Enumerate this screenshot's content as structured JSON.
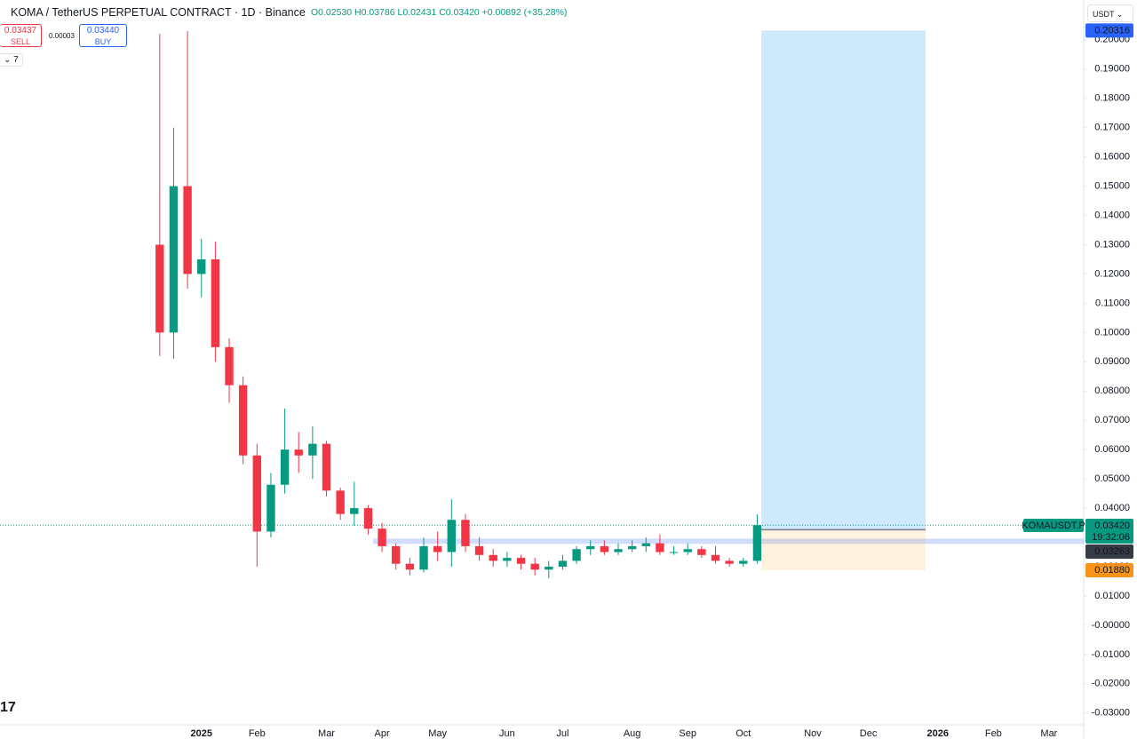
{
  "header": {
    "symbol": "KOMA / TetherUS PERPETUAL CONTRACT · 1D · Binance",
    "ohlc": "O0.02530 H0.03786 L0.02431 C0.03420 +0.00892 (+35.28%)"
  },
  "trade": {
    "sell_price": "0.03437",
    "sell": "SELL",
    "spread": "0.00003",
    "buy_price": "0.03440",
    "buy": "BUY"
  },
  "indicators_count": "7",
  "currency": "USDT",
  "chart_data": {
    "type": "candlestick",
    "categories": [
      null,
      null,
      null,
      "2025",
      null,
      null,
      null,
      "Feb",
      null,
      null,
      null,
      null,
      "Mar",
      null,
      null,
      null,
      "Apr",
      null,
      null,
      null,
      "May",
      null,
      null,
      null,
      null,
      "Jun",
      null,
      null,
      null,
      "Jul",
      null,
      null,
      null,
      null,
      "Aug",
      null,
      null,
      null,
      "Sep",
      null,
      null,
      null,
      "Oct",
      null,
      null,
      null,
      null,
      "Nov",
      null,
      null,
      null,
      "Dec",
      null,
      null,
      null,
      null,
      "2026",
      null,
      null,
      null,
      "Feb",
      null,
      null,
      null,
      "Mar",
      null,
      null
    ],
    "open": [
      0.13,
      0.1,
      0.15,
      0.12,
      0.125,
      0.095,
      0.082,
      0.058,
      0.032,
      0.048,
      0.06,
      0.058,
      0.062,
      0.046,
      0.038,
      0.04,
      0.033,
      0.027,
      0.021,
      0.019,
      0.027,
      0.025,
      0.036,
      0.027,
      0.024,
      0.022,
      0.023,
      0.021,
      0.019,
      0.02,
      0.022,
      0.026,
      0.027,
      0.025,
      0.026,
      0.027,
      0.028,
      0.025,
      0.025,
      0.026,
      0.024,
      0.022,
      0.021,
      0.022,
      null,
      null,
      null,
      null,
      null,
      null,
      null,
      null,
      null,
      null,
      null,
      null,
      null,
      null,
      null,
      null,
      null,
      null,
      null,
      null,
      null,
      null,
      null
    ],
    "high": [
      0.202,
      0.17,
      0.203,
      0.132,
      0.131,
      0.098,
      0.085,
      0.062,
      0.052,
      0.074,
      0.066,
      0.068,
      0.063,
      0.047,
      0.049,
      0.041,
      0.035,
      0.028,
      0.023,
      0.03,
      0.032,
      0.043,
      0.038,
      0.03,
      0.026,
      0.025,
      0.024,
      0.023,
      0.022,
      0.024,
      0.027,
      0.029,
      0.029,
      0.028,
      0.029,
      0.03,
      0.031,
      0.027,
      0.028,
      0.027,
      0.027,
      0.023,
      0.023,
      0.03786,
      null,
      null,
      null,
      null,
      null,
      null,
      null,
      null,
      null,
      null,
      null,
      null,
      null,
      null,
      null,
      null,
      null,
      null,
      null,
      null,
      null,
      null,
      null
    ],
    "low": [
      0.092,
      0.091,
      0.115,
      0.112,
      0.09,
      0.076,
      0.055,
      0.02,
      0.03,
      0.045,
      0.052,
      0.05,
      0.044,
      0.036,
      0.034,
      0.031,
      0.025,
      0.019,
      0.017,
      0.018,
      0.022,
      0.02,
      0.025,
      0.022,
      0.02,
      0.02,
      0.019,
      0.017,
      0.016,
      0.019,
      0.021,
      0.024,
      0.024,
      0.024,
      0.025,
      0.025,
      0.024,
      0.024,
      0.024,
      0.023,
      0.021,
      0.02,
      0.02,
      0.021,
      null,
      null,
      null,
      null,
      null,
      null,
      null,
      null,
      null,
      null,
      null,
      null,
      null,
      null,
      null,
      null,
      null,
      null,
      null,
      null,
      null,
      null,
      null
    ],
    "close": [
      0.1,
      0.15,
      0.12,
      0.125,
      0.095,
      0.082,
      0.058,
      0.032,
      0.048,
      0.06,
      0.058,
      0.062,
      0.046,
      0.038,
      0.04,
      0.033,
      0.027,
      0.021,
      0.019,
      0.027,
      0.025,
      0.036,
      0.027,
      0.024,
      0.022,
      0.023,
      0.021,
      0.019,
      0.02,
      0.022,
      0.026,
      0.027,
      0.025,
      0.026,
      0.027,
      0.028,
      0.025,
      0.025,
      0.026,
      0.024,
      0.022,
      0.021,
      0.022,
      0.0342,
      null,
      null,
      null,
      null,
      null,
      null,
      null,
      null,
      null,
      null,
      null,
      null,
      null,
      null,
      null,
      null,
      null,
      null,
      null,
      null,
      null,
      null,
      null
    ],
    "up_color": "#089981",
    "down_color": "#f23645",
    "ylim": [
      -0.0328,
      0.2045
    ],
    "yticks": [
      {
        "value": 0.2,
        "label": "0.20000"
      },
      {
        "value": 0.19,
        "label": "0.19000"
      },
      {
        "value": 0.18,
        "label": "0.18000"
      },
      {
        "value": 0.17,
        "label": "0.17000"
      },
      {
        "value": 0.16,
        "label": "0.16000"
      },
      {
        "value": 0.15,
        "label": "0.15000"
      },
      {
        "value": 0.14,
        "label": "0.14000"
      },
      {
        "value": 0.13,
        "label": "0.13000"
      },
      {
        "value": 0.12,
        "label": "0.12000"
      },
      {
        "value": 0.11,
        "label": "0.11000"
      },
      {
        "value": 0.1,
        "label": "0.10000"
      },
      {
        "value": 0.09,
        "label": "0.09000"
      },
      {
        "value": 0.08,
        "label": "0.08000"
      },
      {
        "value": 0.07,
        "label": "0.07000"
      },
      {
        "value": 0.06,
        "label": "0.06000"
      },
      {
        "value": 0.05,
        "label": "0.05000"
      },
      {
        "value": 0.04,
        "label": "0.04000"
      },
      {
        "value": 0.03,
        "label": "0.03000"
      },
      {
        "value": 0.02,
        "label": "0.02000"
      },
      {
        "value": 0.01,
        "label": "0.01000"
      },
      {
        "value": 0,
        "label": "-0.00000"
      },
      {
        "value": -0.01,
        "label": "-0.01000"
      },
      {
        "value": -0.02,
        "label": "-0.02000"
      },
      {
        "value": -0.03,
        "label": "-0.03000"
      }
    ],
    "last_price": {
      "value": 0.0342,
      "label": "0.03420"
    },
    "symbol_tag": "KOMAUSDT.P",
    "countdown": "19:32:06",
    "position": {
      "target": {
        "value": 0.20316,
        "label": "0.20316"
      },
      "entry": 0.03263,
      "stop": {
        "value": 0.0188,
        "label": "0.01880"
      }
    },
    "level": 0.0287
  }
}
